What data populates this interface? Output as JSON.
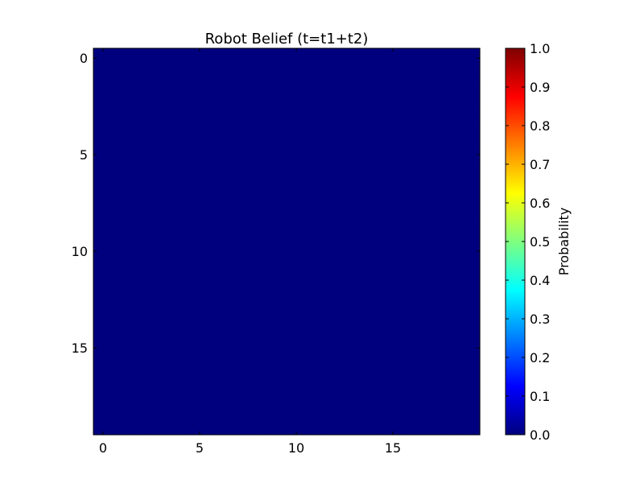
{
  "chart_data": {
    "type": "heatmap",
    "title": "Robot Belief (t=t1+t2)",
    "rows": 20,
    "cols": 20,
    "fill_value": 0.0,
    "colormap": "jet",
    "xlim": [
      -0.5,
      19.5
    ],
    "ylim": [
      19.5,
      -0.5
    ],
    "x_ticks": [
      0,
      5,
      10,
      15
    ],
    "y_ticks": [
      0,
      5,
      10,
      15
    ],
    "x_tick_labels": [
      "0",
      "5",
      "10",
      "15"
    ],
    "y_tick_labels": [
      "0",
      "5",
      "10",
      "15"
    ],
    "colorbar": {
      "label": "Probability",
      "range": [
        0.0,
        1.0
      ],
      "ticks": [
        0.0,
        0.1,
        0.2,
        0.3,
        0.4,
        0.5,
        0.6,
        0.7,
        0.8,
        0.9,
        1.0
      ],
      "tick_labels": [
        "0.0",
        "0.1",
        "0.2",
        "0.3",
        "0.4",
        "0.5",
        "0.6",
        "0.7",
        "0.8",
        "0.9",
        "1.0"
      ]
    }
  },
  "colors": {
    "jet": [
      "#00007f",
      "#0000ff",
      "#007fff",
      "#00ffff",
      "#7fff7f",
      "#ffff00",
      "#ff7f00",
      "#ff0000",
      "#7f0000"
    ]
  }
}
